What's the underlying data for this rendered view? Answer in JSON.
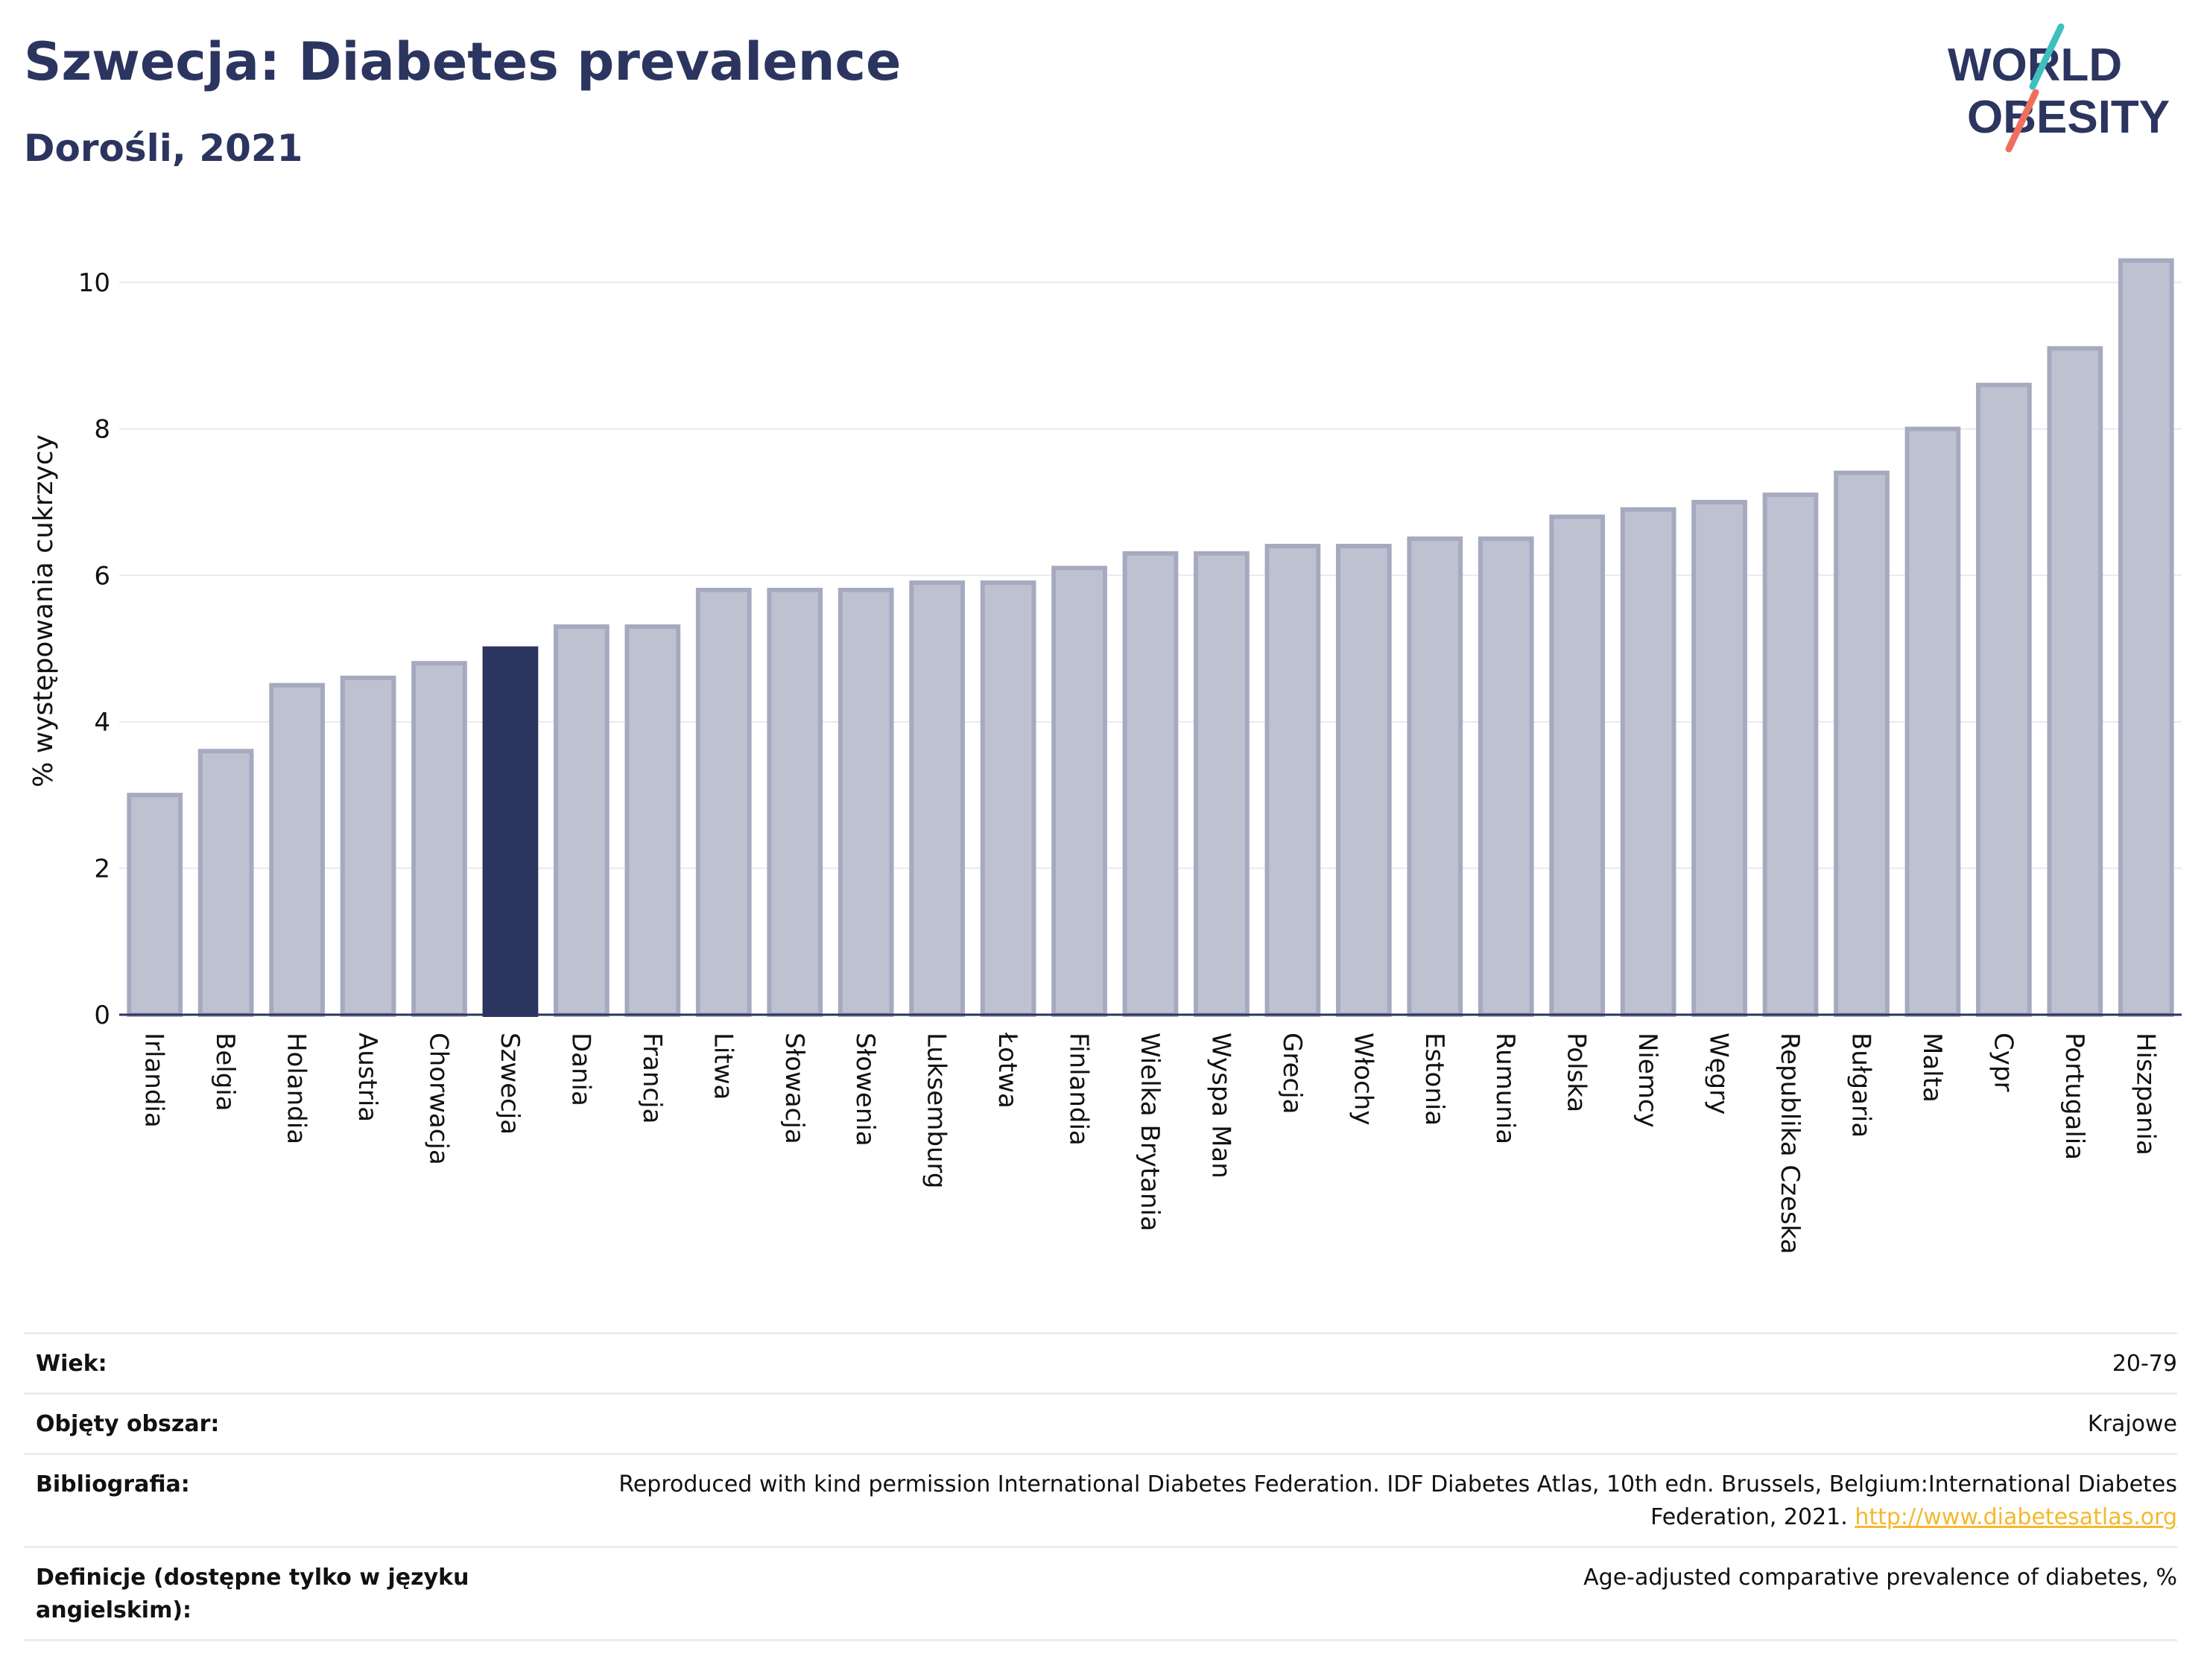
{
  "header": {
    "title": "Szwecja: Diabetes prevalence",
    "subtitle": "Dorośli, 2021"
  },
  "logo": {
    "line1": "WORLD",
    "line2": "OBESITY",
    "teal_color": "#3fbfbf",
    "coral_color": "#ef6f5e",
    "navy_color": "#2b355f"
  },
  "colors": {
    "bar": "#bec2d0",
    "bar_border": "#a6aac0",
    "highlight_bar": "#2b355f",
    "grid": "#e8eaf0",
    "axis": "#2b355f"
  },
  "chart_data": {
    "type": "bar",
    "title": "Szwecja: Diabetes prevalence",
    "subtitle": "Dorośli, 2021",
    "ylabel": "% występowania cukrzycy",
    "xlabel": "",
    "ylim": [
      0,
      10.5
    ],
    "yticks": [
      0,
      2,
      4,
      6,
      8,
      10
    ],
    "grid": true,
    "highlight": "Szwecja",
    "categories": [
      "Irlandia",
      "Belgia",
      "Holandia",
      "Austria",
      "Chorwacja",
      "Szwecja",
      "Dania",
      "Francja",
      "Litwa",
      "Słowacja",
      "Słowenia",
      "Luksemburg",
      "Łotwa",
      "Finlandia",
      "Wielka Brytania",
      "Wyspa Man",
      "Grecja",
      "Włochy",
      "Estonia",
      "Rumunia",
      "Polska",
      "Niemcy",
      "Węgry",
      "Republika Czeska",
      "Bułgaria",
      "Malta",
      "Cypr",
      "Portugalia",
      "Hiszpania"
    ],
    "values": [
      3.0,
      3.6,
      4.5,
      4.6,
      4.8,
      5.0,
      5.3,
      5.3,
      5.8,
      5.8,
      5.8,
      5.9,
      5.9,
      6.1,
      6.3,
      6.3,
      6.4,
      6.4,
      6.5,
      6.5,
      6.8,
      6.9,
      7.0,
      7.1,
      7.4,
      8.0,
      8.6,
      9.1,
      10.3
    ]
  },
  "info": {
    "rows": [
      {
        "key": "Wiek:",
        "value": "20-79"
      },
      {
        "key": "Objęty obszar:",
        "value": "Krajowe"
      },
      {
        "key": "Bibliografia:",
        "value": "Reproduced with kind permission International Diabetes Federation.  IDF Diabetes Atlas, 10th edn. Brussels, Belgium:International Diabetes Federation, 2021.",
        "link": "http://www.diabetesatlas.org"
      },
      {
        "key": "Definicje (dostępne tylko w języku angielskim):",
        "value": "Age-adjusted comparative prevalence of diabetes, %"
      }
    ]
  }
}
